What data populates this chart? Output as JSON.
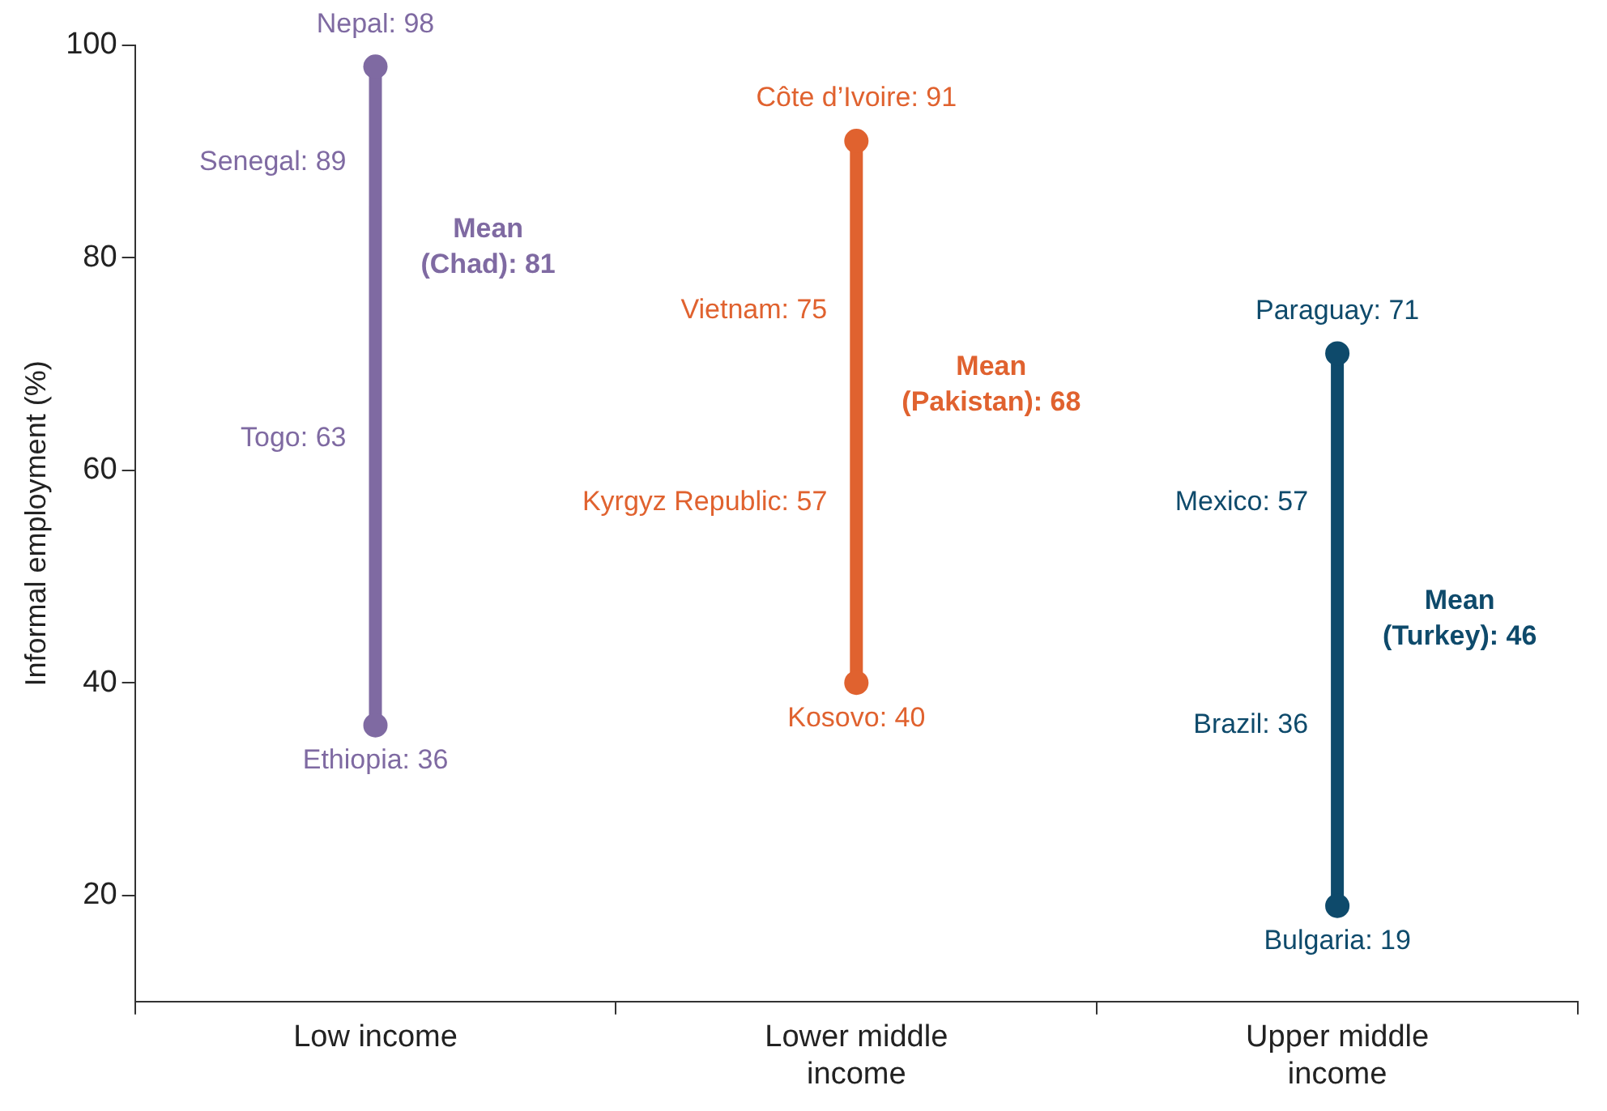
{
  "chart_data": {
    "type": "line",
    "ylabel": "Informal employment (%)",
    "categories": [
      "Low income",
      "Lower middle income",
      "Upper middle income"
    ],
    "series": [
      {
        "color": "#7f6aa2",
        "x": [
          "Low income",
          "Low income"
        ],
        "values": [
          98,
          36
        ]
      },
      {
        "color": "#e0622f",
        "x": [
          "Lower middle income",
          "Lower middle income"
        ],
        "values": [
          91,
          40
        ]
      },
      {
        "color": "#0e4a6b",
        "x": [
          "Upper middle income",
          "Upper middle income"
        ],
        "values": [
          71,
          19
        ]
      }
    ],
    "marker": "circle",
    "ylim": [
      10,
      100
    ],
    "yticks": [
      20,
      40,
      60,
      80,
      100
    ],
    "annotations": [
      {
        "text": "Nepal: 98",
        "x": "Low income",
        "y": 98
      },
      {
        "text": "Senegal: 89",
        "x": "Low income",
        "y": 89
      },
      {
        "text": "Togo: 63",
        "x": "Low income",
        "y": 63
      },
      {
        "text": "Ethiopia: 36",
        "x": "Low income",
        "y": 36
      },
      {
        "text": "Mean\n(Chad): 81",
        "x": "Low income",
        "y": 81
      },
      {
        "text": "Côte d’Ivoire: 91",
        "x": "Lower middle income",
        "y": 91
      },
      {
        "text": "Vietnam: 75",
        "x": "Lower middle income",
        "y": 75
      },
      {
        "text": "Kyrgyz Republic: 57",
        "x": "Lower middle income",
        "y": 57
      },
      {
        "text": "Kosovo: 40",
        "x": "Lower middle income",
        "y": 40
      },
      {
        "text": "Mean\n(Pakistan): 68",
        "x": "Lower middle income",
        "y": 68
      },
      {
        "text": "Paraguay: 71",
        "x": "Upper middle income",
        "y": 71
      },
      {
        "text": "Mexico: 57",
        "x": "Upper middle income",
        "y": 57
      },
      {
        "text": "Brazil: 36",
        "x": "Upper middle income",
        "y": 36
      },
      {
        "text": "Bulgaria: 19",
        "x": "Upper middle income",
        "y": 19
      },
      {
        "text": "Mean\n(Turkey): 46",
        "x": "Upper middle income",
        "y": 46
      }
    ]
  }
}
